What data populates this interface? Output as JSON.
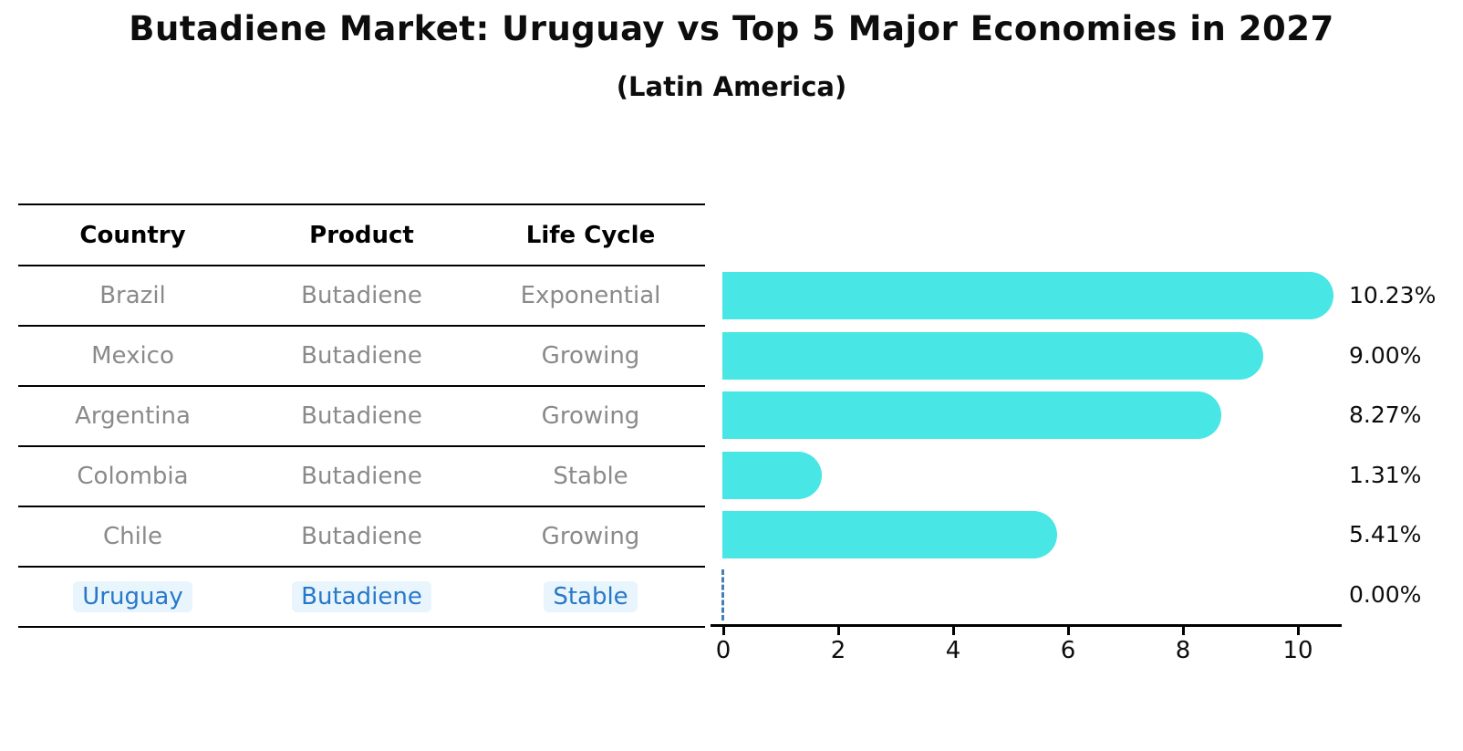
{
  "title": "Butadiene Market: Uruguay vs Top 5 Major Economies in 2027",
  "subtitle": "(Latin America)",
  "table": {
    "headers": [
      "Country",
      "Product",
      "Life Cycle"
    ],
    "rows": [
      {
        "country": "Brazil",
        "product": "Butadiene",
        "life_cycle": "Exponential",
        "highlight": false
      },
      {
        "country": "Mexico",
        "product": "Butadiene",
        "life_cycle": "Growing",
        "highlight": false
      },
      {
        "country": "Argentina",
        "product": "Butadiene",
        "life_cycle": "Growing",
        "highlight": false
      },
      {
        "country": "Colombia",
        "product": "Butadiene",
        "life_cycle": "Stable",
        "highlight": false
      },
      {
        "country": "Chile",
        "product": "Butadiene",
        "life_cycle": "Growing",
        "highlight": false
      },
      {
        "country": "Uruguay",
        "product": "Butadiene",
        "life_cycle": "Stable",
        "highlight": true
      }
    ]
  },
  "chart_data": {
    "type": "bar",
    "orientation": "horizontal",
    "title": "Butadiene Market: Uruguay vs Top 5 Major Economies in 2027 (Latin America)",
    "categories": [
      "Brazil",
      "Mexico",
      "Argentina",
      "Colombia",
      "Chile",
      "Uruguay"
    ],
    "values": [
      10.23,
      9.0,
      8.27,
      1.31,
      5.41,
      0.0
    ],
    "value_labels": [
      "10.23%",
      "9.00%",
      "8.27%",
      "1.31%",
      "5.41%",
      "0.00%"
    ],
    "xlabel": "",
    "ylabel": "",
    "xlim": [
      0,
      10.75
    ],
    "x_ticks": [
      0,
      2,
      4,
      6,
      8,
      10
    ],
    "grid": false,
    "legend": false,
    "bar_color": "#48e6e4",
    "zero_marker_style": "dashed-line",
    "zero_marker_color": "#457fb5"
  },
  "colors": {
    "bar": "#48e6e4",
    "highlight_text": "#2878c8",
    "highlight_bg": "#e8f5fd",
    "row_text": "#8a8a8a",
    "axis": "#000000"
  }
}
